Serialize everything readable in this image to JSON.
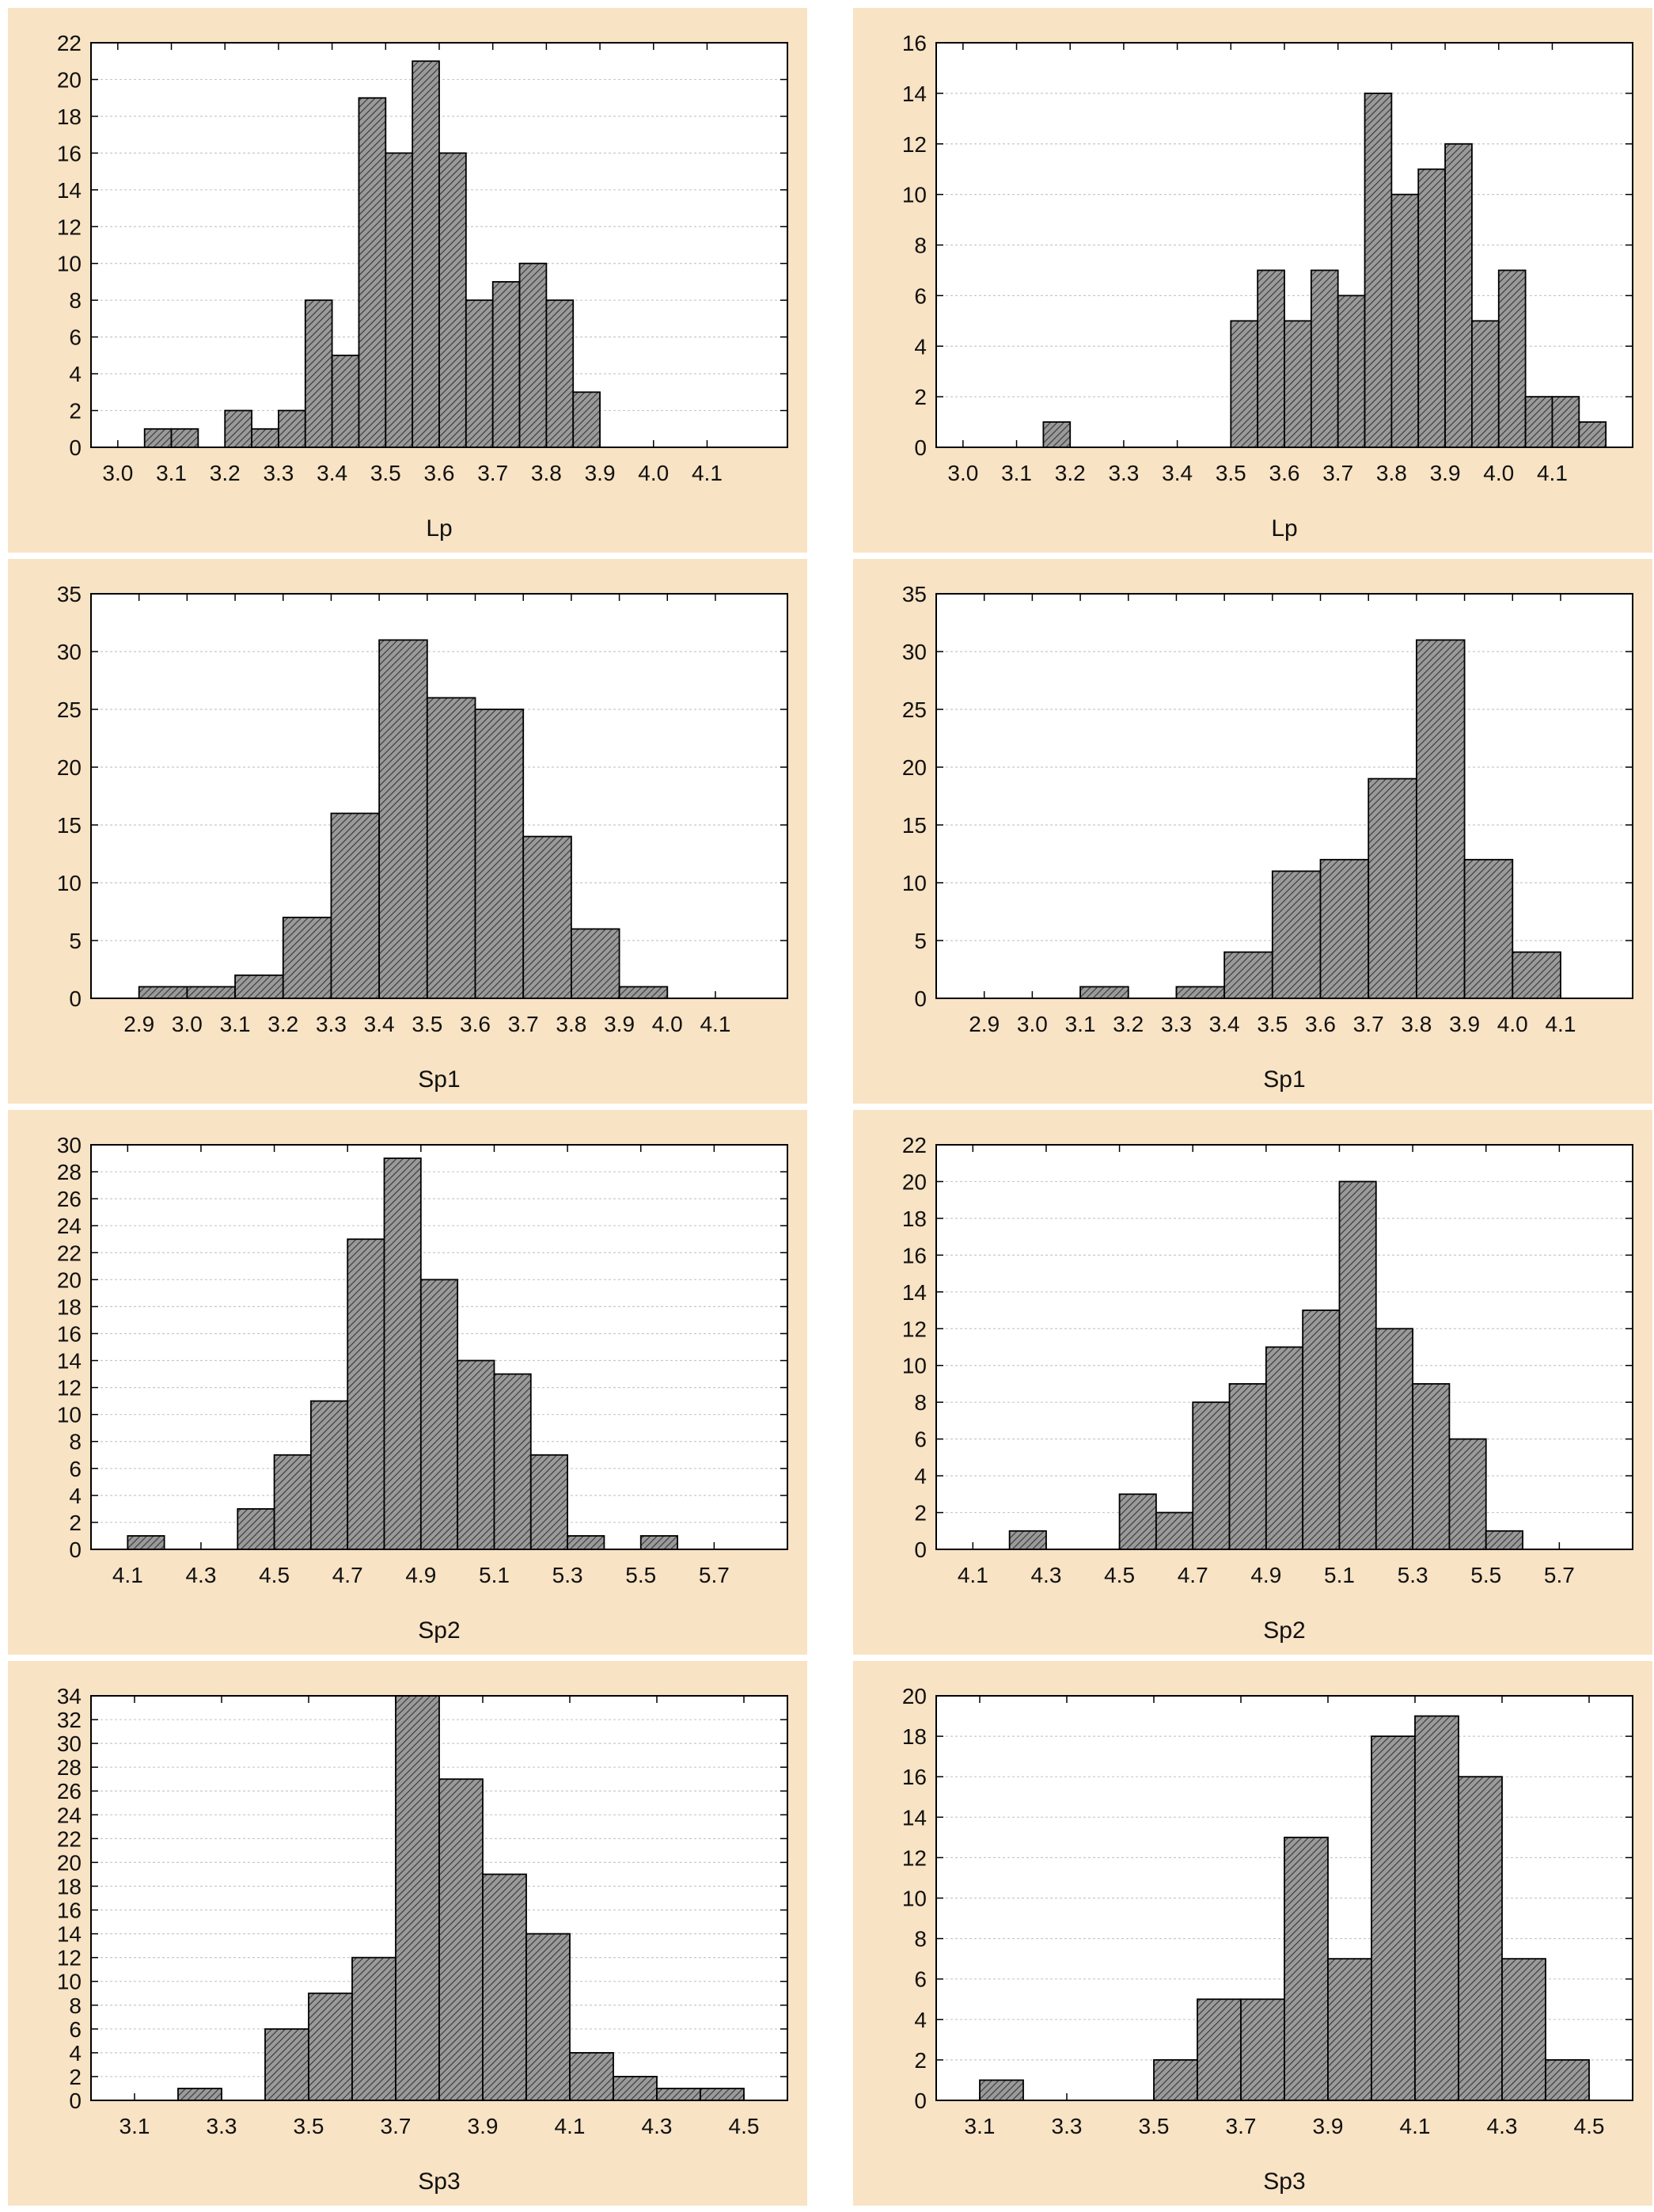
{
  "colors": {
    "panel_bg": "#f8e3c4",
    "plot_bg": "#ffffff",
    "bar_fill": "#9a9a9a",
    "bar_hatch": "#3c3c3c",
    "grid": "#c8c8c8"
  },
  "chart_data": [
    {
      "type": "bar",
      "xlabel": "Lp",
      "grid": true,
      "ylim": [
        0,
        22
      ],
      "yticks": [
        0,
        2,
        4,
        6,
        8,
        10,
        12,
        14,
        16,
        18,
        20,
        22
      ],
      "xlim": [
        2.95,
        4.25
      ],
      "xticks": [
        "3.0",
        "3.1",
        "3.2",
        "3.3",
        "3.4",
        "3.5",
        "3.6",
        "3.7",
        "3.8",
        "3.9",
        "4.0",
        "4.1"
      ],
      "bin_start": 3.05,
      "bin_width": 0.05,
      "values": [
        1,
        1,
        0,
        2,
        1,
        2,
        8,
        5,
        19,
        16,
        21,
        16,
        8,
        9,
        10,
        8,
        3
      ]
    },
    {
      "type": "bar",
      "xlabel": "Lp",
      "grid": true,
      "ylim": [
        0,
        16
      ],
      "yticks": [
        0,
        2,
        4,
        6,
        8,
        10,
        12,
        14,
        16
      ],
      "xlim": [
        2.95,
        4.25
      ],
      "xticks": [
        "3.0",
        "3.1",
        "3.2",
        "3.3",
        "3.4",
        "3.5",
        "3.6",
        "3.7",
        "3.8",
        "3.9",
        "4.0",
        "4.1"
      ],
      "bin_start": 3.15,
      "bin_width": 0.05,
      "values": [
        1,
        0,
        0,
        0,
        0,
        0,
        0,
        5,
        7,
        5,
        7,
        6,
        14,
        10,
        11,
        12,
        5,
        7,
        2,
        2,
        1
      ]
    },
    {
      "type": "bar",
      "xlabel": "Sp1",
      "grid": true,
      "ylim": [
        0,
        35
      ],
      "yticks": [
        0,
        5,
        10,
        15,
        20,
        25,
        30,
        35
      ],
      "xlim": [
        2.8,
        4.25
      ],
      "xticks": [
        "2.9",
        "3.0",
        "3.1",
        "3.2",
        "3.3",
        "3.4",
        "3.5",
        "3.6",
        "3.7",
        "3.8",
        "3.9",
        "4.0",
        "4.1"
      ],
      "bin_start": 2.9,
      "bin_width": 0.1,
      "values": [
        1,
        1,
        2,
        7,
        16,
        31,
        26,
        25,
        14,
        6,
        1
      ]
    },
    {
      "type": "bar",
      "xlabel": "Sp1",
      "grid": true,
      "ylim": [
        0,
        35
      ],
      "yticks": [
        0,
        5,
        10,
        15,
        20,
        25,
        30,
        35
      ],
      "xlim": [
        2.8,
        4.25
      ],
      "xticks": [
        "2.9",
        "3.0",
        "3.1",
        "3.2",
        "3.3",
        "3.4",
        "3.5",
        "3.6",
        "3.7",
        "3.8",
        "3.9",
        "4.0",
        "4.1"
      ],
      "bin_start": 3.1,
      "bin_width": 0.1,
      "values": [
        1,
        0,
        1,
        4,
        11,
        12,
        19,
        31,
        12,
        4
      ]
    },
    {
      "type": "bar",
      "xlabel": "Sp2",
      "grid": true,
      "ylim": [
        0,
        30
      ],
      "yticks": [
        0,
        2,
        4,
        6,
        8,
        10,
        12,
        14,
        16,
        18,
        20,
        22,
        24,
        26,
        28,
        30
      ],
      "xlim": [
        4.0,
        5.9
      ],
      "xticks": [
        "4.1",
        "4.3",
        "4.5",
        "4.7",
        "4.9",
        "5.1",
        "5.3",
        "5.5",
        "5.7"
      ],
      "bin_start": 4.1,
      "bin_width": 0.1,
      "values": [
        1,
        0,
        0,
        3,
        7,
        11,
        23,
        29,
        20,
        14,
        13,
        7,
        1,
        0,
        1
      ]
    },
    {
      "type": "bar",
      "xlabel": "Sp2",
      "grid": true,
      "ylim": [
        0,
        22
      ],
      "yticks": [
        0,
        2,
        4,
        6,
        8,
        10,
        12,
        14,
        16,
        18,
        20,
        22
      ],
      "xlim": [
        4.0,
        5.9
      ],
      "xticks": [
        "4.1",
        "4.3",
        "4.5",
        "4.7",
        "4.9",
        "5.1",
        "5.3",
        "5.5",
        "5.7"
      ],
      "bin_start": 4.2,
      "bin_width": 0.1,
      "values": [
        1,
        0,
        0,
        3,
        2,
        8,
        9,
        11,
        13,
        20,
        12,
        9,
        6,
        1
      ]
    },
    {
      "type": "bar",
      "xlabel": "Sp3",
      "grid": true,
      "ylim": [
        0,
        34
      ],
      "yticks": [
        0,
        2,
        4,
        6,
        8,
        10,
        12,
        14,
        16,
        18,
        20,
        22,
        24,
        26,
        28,
        30,
        32,
        34
      ],
      "xlim": [
        3.0,
        4.6
      ],
      "xticks": [
        "3.1",
        "3.3",
        "3.5",
        "3.7",
        "3.9",
        "4.1",
        "4.3",
        "4.5"
      ],
      "bin_start": 3.2,
      "bin_width": 0.1,
      "values": [
        1,
        0,
        6,
        9,
        12,
        34,
        27,
        19,
        14,
        4,
        2,
        1,
        1
      ]
    },
    {
      "type": "bar",
      "xlabel": "Sp3",
      "grid": true,
      "ylim": [
        0,
        20
      ],
      "yticks": [
        0,
        2,
        4,
        6,
        8,
        10,
        12,
        14,
        16,
        18,
        20
      ],
      "xlim": [
        3.0,
        4.6
      ],
      "xticks": [
        "3.1",
        "3.3",
        "3.5",
        "3.7",
        "3.9",
        "4.1",
        "4.3",
        "4.5"
      ],
      "bin_start": 3.1,
      "bin_width": 0.1,
      "values": [
        1,
        0,
        0,
        0,
        2,
        5,
        5,
        13,
        7,
        18,
        19,
        16,
        7,
        2
      ]
    }
  ]
}
